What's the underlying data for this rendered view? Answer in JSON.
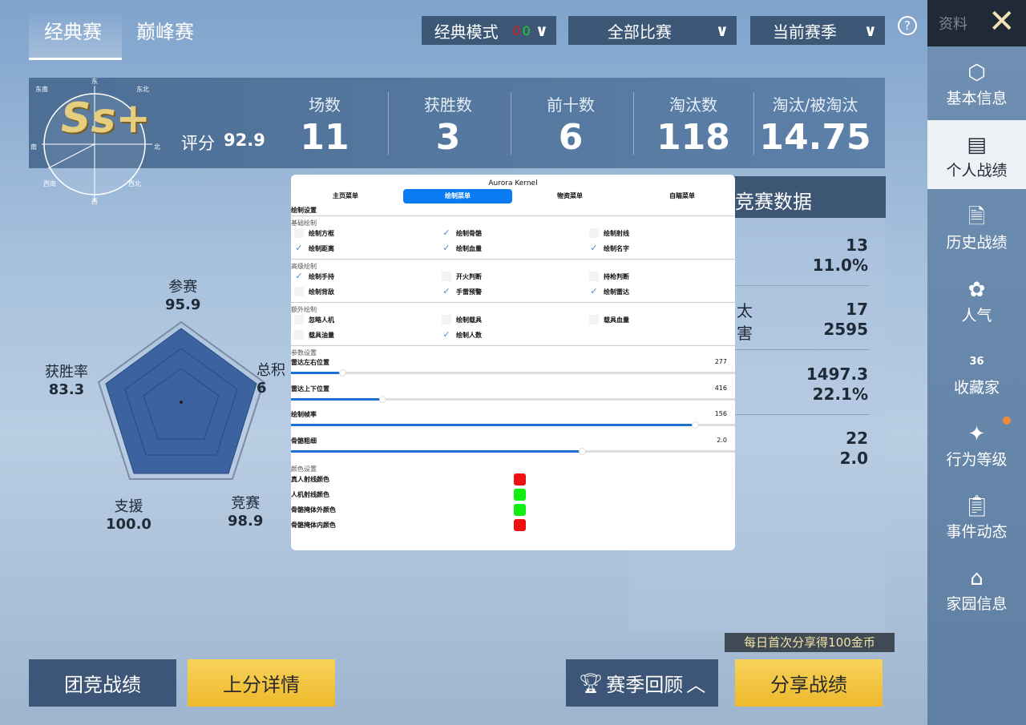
{
  "tabs": [
    {
      "label": "经典赛",
      "active": true
    },
    {
      "label": "巅峰赛",
      "active": false
    }
  ],
  "filters": [
    {
      "label": "经典模式",
      "overlay_marks": [
        "0",
        "0"
      ]
    },
    {
      "label": "全部比赛"
    },
    {
      "label": "当前赛季"
    }
  ],
  "help_icon": "question-circle-icon",
  "sidebar": {
    "header": "资料",
    "close_icon": "close-x-icon",
    "items": [
      {
        "label": "基本信息",
        "icon": "person-badge-icon"
      },
      {
        "label": "个人战绩",
        "icon": "chart-document-icon",
        "active": true
      },
      {
        "label": "历史战绩",
        "icon": "document-crosshair-icon"
      },
      {
        "label": "人气",
        "icon": "flower-badge-icon"
      },
      {
        "label": "收藏家",
        "icon": "collector-badge-icon",
        "badge": "36"
      },
      {
        "label": "行为等级",
        "icon": "star-shield-icon",
        "notification_dot": true
      },
      {
        "label": "事件动态",
        "icon": "clipboard-icon"
      },
      {
        "label": "家园信息",
        "icon": "house-icon"
      }
    ]
  },
  "rank": {
    "tier": "Ss+",
    "score_label": "评分",
    "score": "92.9",
    "compass": [
      "东",
      "东北",
      "北",
      "西北",
      "西",
      "西南",
      "南",
      "东南"
    ]
  },
  "stats": [
    {
      "label": "场数",
      "value": "11"
    },
    {
      "label": "获胜数",
      "value": "3"
    },
    {
      "label": "前十数",
      "value": "6"
    },
    {
      "label": "淘汰数",
      "value": "118"
    },
    {
      "label": "淘汰/被淘汰",
      "value": "14.75"
    }
  ],
  "radar": {
    "axes": [
      {
        "label": "参赛",
        "value": "95.9"
      },
      {
        "label": "总积",
        "value": "6"
      },
      {
        "label": "竞赛",
        "value": "98.9"
      },
      {
        "label": "支援",
        "value": "100.0"
      },
      {
        "label": "获胜率",
        "value": "83.3"
      }
    ]
  },
  "competition": {
    "title": "竞赛数据",
    "partial_labels": [
      "太",
      "害"
    ],
    "rows": [
      [
        "13",
        "11.0%"
      ],
      [
        "17",
        "2595"
      ],
      [
        "1497.3",
        "22.1%"
      ],
      [
        "22",
        "2.0"
      ]
    ]
  },
  "overlay": {
    "title": "Aurora Kernel",
    "tabs": [
      {
        "label": "主页菜单"
      },
      {
        "label": "绘制菜单",
        "active": true
      },
      {
        "label": "物资菜单"
      },
      {
        "label": "自瞄菜单"
      }
    ],
    "section_title": "绘制设置",
    "groups": [
      {
        "title": "基础绘制",
        "items": [
          {
            "label": "绘制方框",
            "checked": false
          },
          {
            "label": "绘制骨骼",
            "checked": true
          },
          {
            "label": "绘制射线",
            "checked": false
          },
          {
            "label": "绘制距离",
            "checked": true
          },
          {
            "label": "绘制血量",
            "checked": true
          },
          {
            "label": "绘制名字",
            "checked": true
          }
        ]
      },
      {
        "title": "高级绘制",
        "items": [
          {
            "label": "绘制手持",
            "checked": true
          },
          {
            "label": "开火判断",
            "checked": false
          },
          {
            "label": "持枪判断",
            "checked": false
          },
          {
            "label": "绘制背敌",
            "checked": false
          },
          {
            "label": "手雷预警",
            "checked": true
          },
          {
            "label": "绘制雷达",
            "checked": true
          }
        ]
      },
      {
        "title": "额外绘制",
        "items": [
          {
            "label": "忽略人机",
            "checked": false
          },
          {
            "label": "绘制载具",
            "checked": false
          },
          {
            "label": "载具血量",
            "checked": false
          },
          {
            "label": "载具油量",
            "checked": false
          },
          {
            "label": "绘制人数",
            "checked": true
          }
        ]
      }
    ],
    "params_title": "参数设置",
    "sliders": [
      {
        "label": "雷达左右位置",
        "value": "277",
        "fraction": 0.115
      },
      {
        "label": "雷达上下位置",
        "value": "416",
        "fraction": 0.205
      },
      {
        "label": "绘制帧率",
        "value": "156",
        "fraction": 0.91
      },
      {
        "label": "骨骼粗细",
        "value": "2.0",
        "fraction": 0.655
      }
    ],
    "colors_title": "颜色设置",
    "colors": [
      {
        "label": "真人射线颜色",
        "color": "#ee1111"
      },
      {
        "label": "人机射线颜色",
        "color": "#11ee11"
      },
      {
        "label": "骨骼掩体外颜色",
        "color": "#11ee11"
      },
      {
        "label": "骨骼掩体内颜色",
        "color": "#ee1111"
      }
    ]
  },
  "buttons": {
    "team": "团竞战绩",
    "rank_detail": "上分详情",
    "season_review": "赛季回顾",
    "share": "分享战绩",
    "share_tip": "每日首次分享得100金币"
  }
}
